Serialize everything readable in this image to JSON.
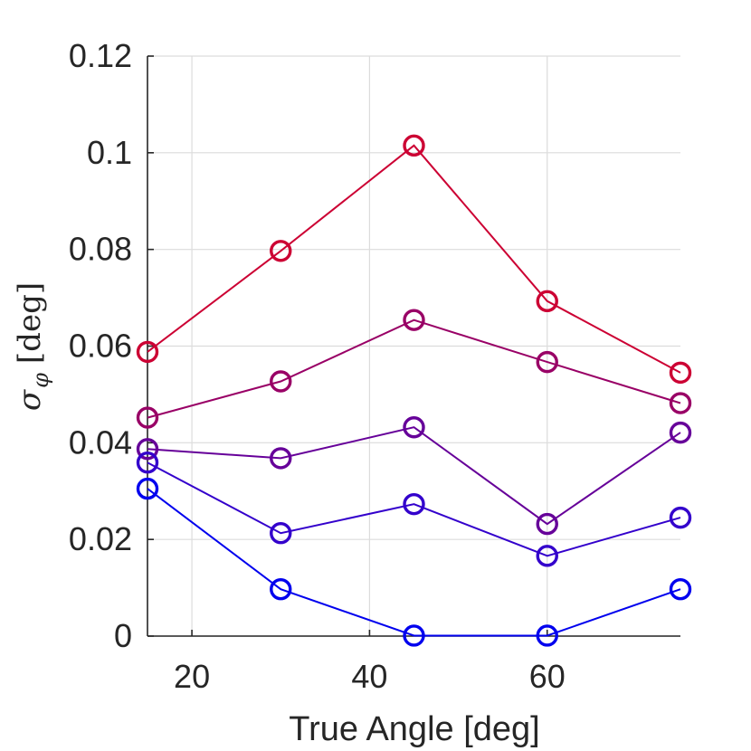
{
  "chart_data": {
    "type": "line",
    "xlabel": "True Angle [deg]",
    "ylabel": {
      "symbol": "σ",
      "subscript": "φ",
      "unit": "[deg]"
    },
    "x": [
      15,
      30,
      45,
      60,
      75
    ],
    "xlim": [
      15,
      75
    ],
    "ylim": [
      0,
      0.12
    ],
    "xticks": [
      20,
      40,
      60
    ],
    "xtick_labels": [
      "20",
      "40",
      "60"
    ],
    "yticks": [
      0,
      0.02,
      0.04,
      0.06,
      0.08,
      0.1,
      0.12
    ],
    "ytick_labels": [
      "0",
      "0.02",
      "0.04",
      "0.06",
      "0.08",
      "0.1",
      "0.12"
    ],
    "grid": true,
    "marker": "circle",
    "series": [
      {
        "color": "#cc0033",
        "values": [
          0.0588,
          0.0797,
          0.1015,
          0.0693,
          0.0545
        ]
      },
      {
        "color": "#990066",
        "values": [
          0.0452,
          0.0527,
          0.0654,
          0.0567,
          0.0482
        ]
      },
      {
        "color": "#660099",
        "values": [
          0.0387,
          0.0368,
          0.0432,
          0.0232,
          0.0421
        ]
      },
      {
        "color": "#3300cc",
        "values": [
          0.0359,
          0.0213,
          0.0273,
          0.0166,
          0.0245
        ]
      },
      {
        "color": "#0000ee",
        "values": [
          0.0305,
          0.0097,
          0.0001,
          0.0001,
          0.0097
        ]
      }
    ]
  }
}
